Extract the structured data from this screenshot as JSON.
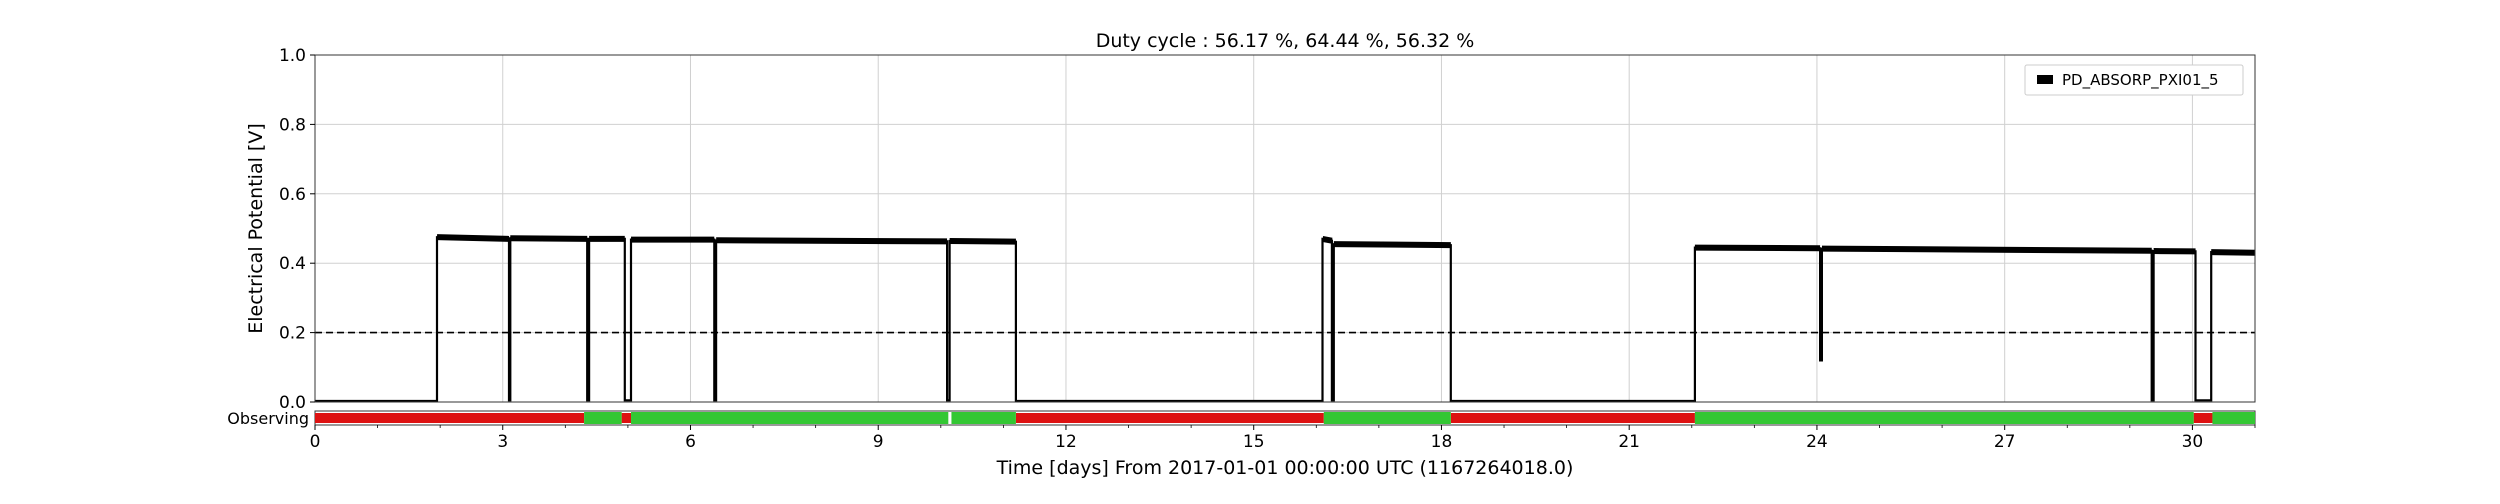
{
  "chart_data": {
    "type": "line",
    "title": "Duty cycle : 56.17 %, 64.44 %, 56.32 %",
    "xlabel": "Time [days] From 2017-01-01 00:00:00 UTC (1167264018.0)",
    "ylabel": "Electrical Potential [V]",
    "xlim": [
      0,
      31
    ],
    "ylim": [
      0,
      1
    ],
    "xticks": [
      0,
      3,
      6,
      9,
      12,
      15,
      18,
      21,
      24,
      27,
      30
    ],
    "yticks": [
      0.0,
      0.2,
      0.4,
      0.6,
      0.8,
      1.0
    ],
    "ytick_labels": [
      "0.0",
      "0.2",
      "0.4",
      "0.6",
      "0.8",
      "1.0"
    ],
    "grid": true,
    "legend_position": "top-right",
    "threshold": {
      "value": 0.2,
      "style": "dashed",
      "color": "#000000"
    },
    "series": [
      {
        "name": "PD_ABSORP_PXI01_5",
        "color": "#000000",
        "x": [
          0,
          1.95,
          1.95,
          3.1,
          3.1,
          3.12,
          3.12,
          4.35,
          4.35,
          4.38,
          4.38,
          4.95,
          4.95,
          5.05,
          5.05,
          6.38,
          6.38,
          6.41,
          6.41,
          10.1,
          10.1,
          10.14,
          10.14,
          11.2,
          11.2,
          16.1,
          16.1,
          16.25,
          16.25,
          16.28,
          16.28,
          18.15,
          18.15,
          22.05,
          22.05,
          24.05,
          24.05,
          24.08,
          24.08,
          29.35,
          29.35,
          29.38,
          29.38,
          30.05,
          30.05,
          30.3,
          30.3,
          31
        ],
        "y": [
          0.003,
          0.003,
          0.475,
          0.47,
          0.005,
          0.005,
          0.472,
          0.47,
          0.005,
          0.005,
          0.47,
          0.47,
          0.005,
          0.005,
          0.468,
          0.468,
          0.005,
          0.005,
          0.466,
          0.463,
          0.005,
          0.005,
          0.464,
          0.462,
          0.003,
          0.003,
          0.47,
          0.465,
          0.005,
          0.005,
          0.455,
          0.452,
          0.003,
          0.003,
          0.445,
          0.443,
          0.12,
          0.12,
          0.442,
          0.436,
          0.005,
          0.005,
          0.435,
          0.434,
          0.005,
          0.005,
          0.432,
          0.43
        ]
      }
    ],
    "segments": {
      "label": "Observing",
      "active_color": "#33c733",
      "inactive_color": "#dd1111",
      "active": [
        [
          4.3,
          4.9
        ],
        [
          5.05,
          10.12
        ],
        [
          10.17,
          11.2
        ],
        [
          16.12,
          18.15
        ],
        [
          22.05,
          30.02
        ],
        [
          30.32,
          31
        ]
      ],
      "inactive": [
        [
          0,
          4.3
        ],
        [
          4.9,
          5.05
        ],
        [
          11.2,
          16.12
        ],
        [
          18.15,
          22.05
        ],
        [
          30.02,
          30.32
        ]
      ]
    }
  }
}
